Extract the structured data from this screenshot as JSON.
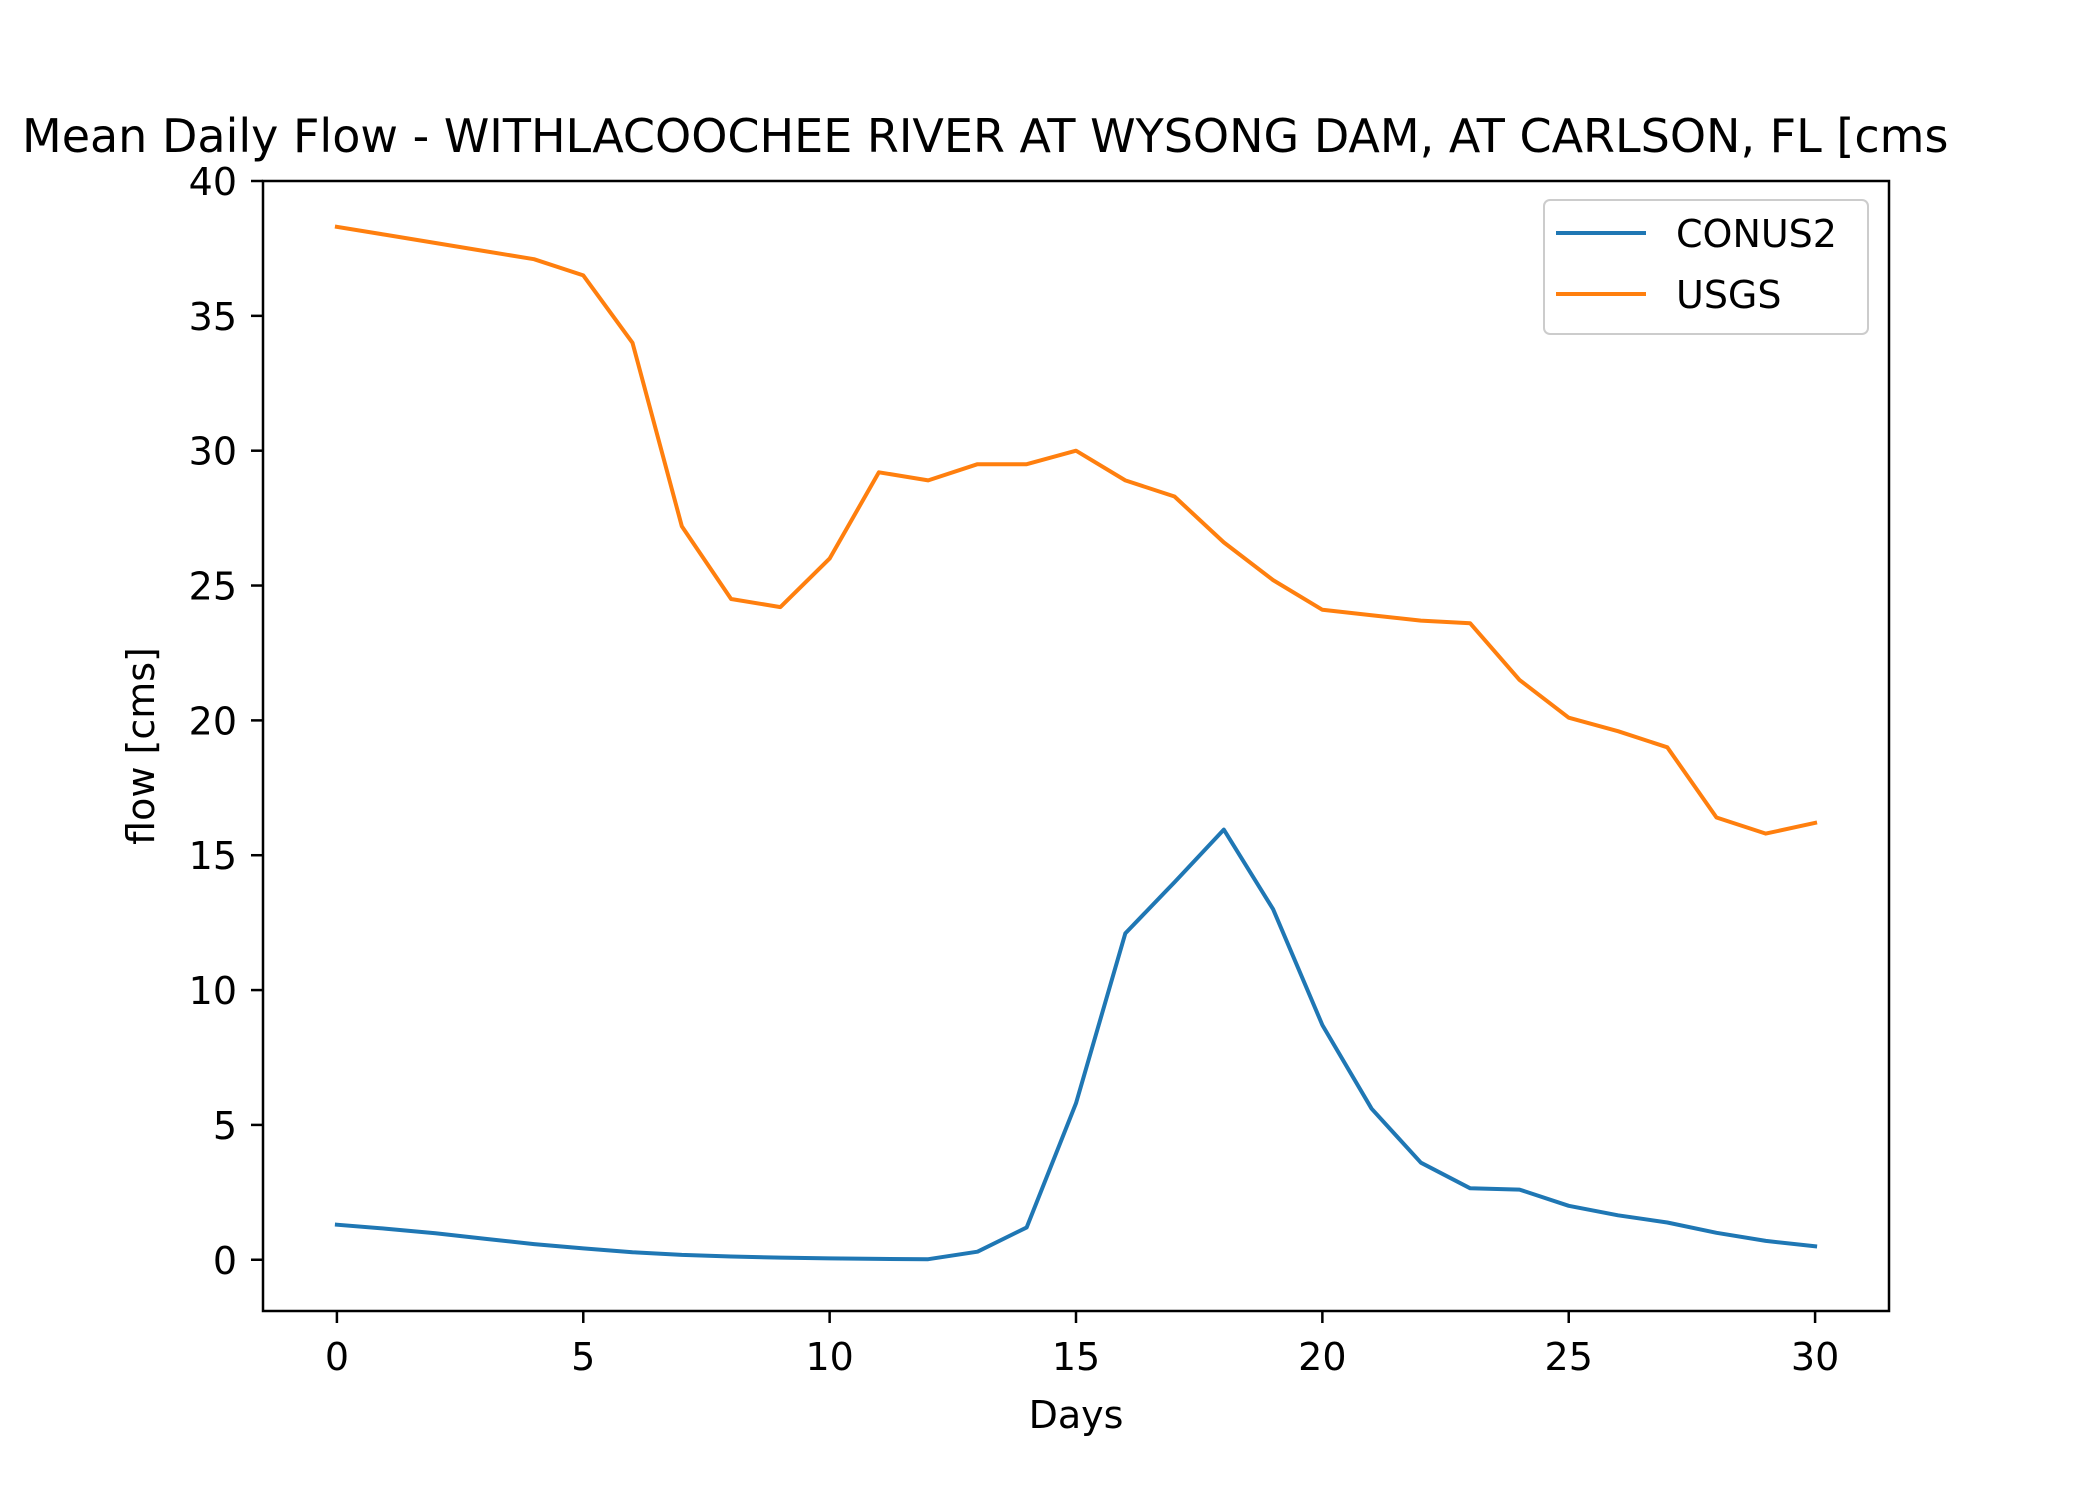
{
  "chart_data": {
    "type": "line",
    "title": "Mean Daily Flow - WITHLACOOCHEE RIVER AT WYSONG DAM, AT CARLSON, FL [cms",
    "xlabel": "Days",
    "ylabel": "flow [cms]",
    "xlim": [
      -1.5,
      31.5
    ],
    "ylim": [
      -1.9,
      40
    ],
    "xticks": [
      0,
      5,
      10,
      15,
      20,
      25,
      30
    ],
    "xtick_labels": [
      "0",
      "5",
      "10",
      "15",
      "20",
      "25",
      "30"
    ],
    "yticks": [
      0,
      5,
      10,
      15,
      20,
      25,
      30,
      35,
      40
    ],
    "ytick_labels": [
      "0",
      "5",
      "10",
      "15",
      "20",
      "25",
      "30",
      "35",
      "40"
    ],
    "grid": false,
    "legend_position": "upper right",
    "x": [
      0,
      1,
      2,
      3,
      4,
      5,
      6,
      7,
      8,
      9,
      10,
      11,
      12,
      13,
      14,
      15,
      16,
      17,
      18,
      19,
      20,
      21,
      22,
      23,
      24,
      25,
      26,
      27,
      28,
      29,
      30
    ],
    "series": [
      {
        "name": "CONUS2",
        "color": "#1f77b4",
        "values": [
          1.3,
          1.15,
          0.98,
          0.78,
          0.58,
          0.42,
          0.28,
          0.18,
          0.12,
          0.08,
          0.05,
          0.03,
          0.02,
          0.3,
          1.2,
          5.8,
          12.1,
          14.0,
          15.95,
          13.0,
          8.7,
          5.6,
          3.6,
          2.65,
          2.6,
          2.0,
          1.65,
          1.38,
          1.0,
          0.7,
          0.5
        ]
      },
      {
        "name": "USGS",
        "color": "#ff7f0e",
        "values": [
          38.3,
          38.0,
          37.7,
          37.4,
          37.1,
          36.5,
          34.0,
          27.2,
          24.5,
          24.2,
          26.0,
          29.2,
          28.9,
          29.5,
          29.5,
          30.0,
          28.9,
          28.3,
          26.6,
          25.2,
          24.1,
          23.9,
          23.7,
          23.6,
          21.5,
          20.1,
          19.6,
          19.0,
          16.4,
          15.8,
          16.2
        ]
      }
    ]
  }
}
